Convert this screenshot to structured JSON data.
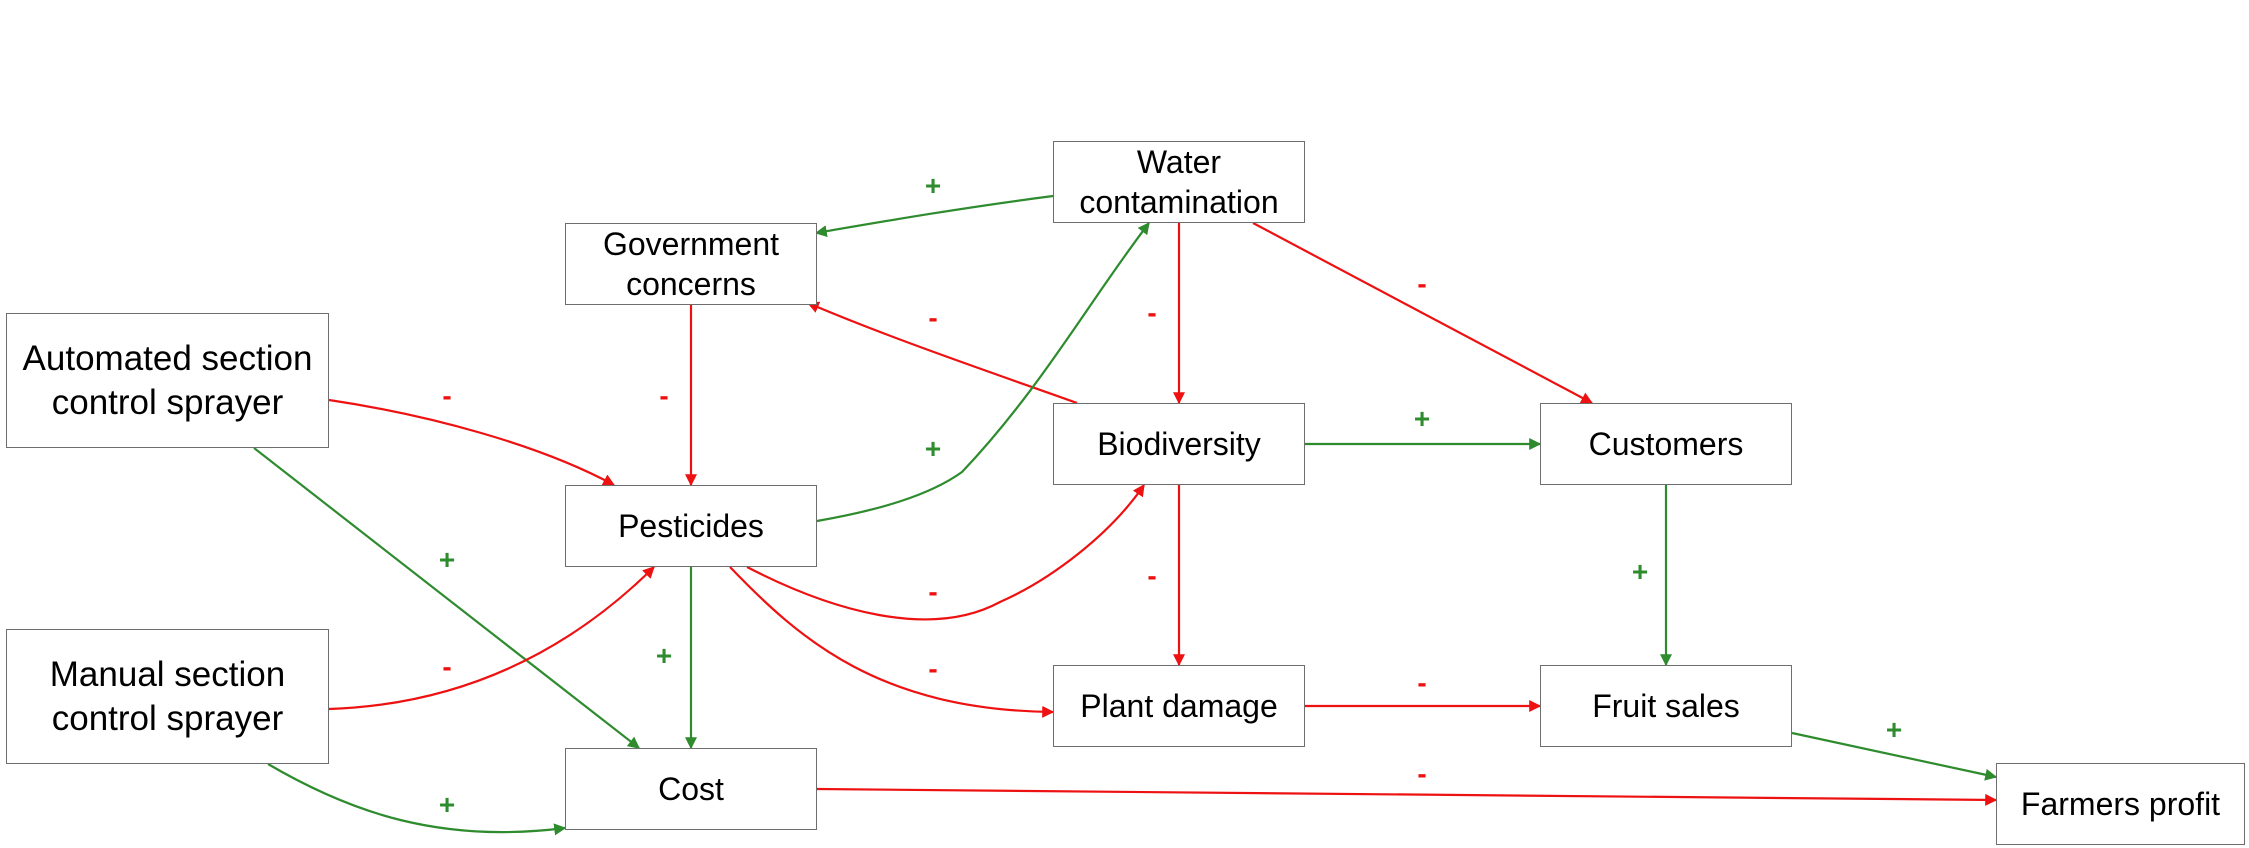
{
  "colors": {
    "positive": "#2e8b2e",
    "negative": "#ee1111",
    "border": "#6e6e6e",
    "text": "#000000"
  },
  "nodes": {
    "water_contamination": "Water\ncontamination",
    "government_concerns": "Government\nconcerns",
    "automated_sprayer": "Automated section\ncontrol sprayer",
    "manual_sprayer": "Manual section\ncontrol sprayer",
    "pesticides": "Pesticides",
    "biodiversity": "Biodiversity",
    "customers": "Customers",
    "plant_damage": "Plant damage",
    "fruit_sales": "Fruit sales",
    "cost": "Cost",
    "farmers_profit": "Farmers profit"
  },
  "edges": [
    {
      "id": "water-to-government",
      "from": "water_contamination",
      "to": "government_concerns",
      "sign": "+",
      "polarity": "positive"
    },
    {
      "id": "water-to-biodiversity",
      "from": "water_contamination",
      "to": "biodiversity",
      "sign": "-",
      "polarity": "negative"
    },
    {
      "id": "water-to-customers",
      "from": "water_contamination",
      "to": "customers",
      "sign": "-",
      "polarity": "negative"
    },
    {
      "id": "biodiversity-to-government",
      "from": "biodiversity",
      "to": "government_concerns",
      "sign": "-",
      "polarity": "negative"
    },
    {
      "id": "government-to-pesticides",
      "from": "government_concerns",
      "to": "pesticides",
      "sign": "-",
      "polarity": "negative"
    },
    {
      "id": "automated-to-pesticides",
      "from": "automated_sprayer",
      "to": "pesticides",
      "sign": "-",
      "polarity": "negative"
    },
    {
      "id": "automated-to-cost",
      "from": "automated_sprayer",
      "to": "cost",
      "sign": "+",
      "polarity": "positive"
    },
    {
      "id": "pesticides-to-water",
      "from": "pesticides",
      "to": "water_contamination",
      "sign": "+",
      "polarity": "positive"
    },
    {
      "id": "manual-to-pesticides",
      "from": "manual_sprayer",
      "to": "pesticides",
      "sign": "-",
      "polarity": "negative"
    },
    {
      "id": "manual-to-cost",
      "from": "manual_sprayer",
      "to": "cost",
      "sign": "+",
      "polarity": "positive"
    },
    {
      "id": "pesticides-to-cost",
      "from": "pesticides",
      "to": "cost",
      "sign": "+",
      "polarity": "positive"
    },
    {
      "id": "pesticides-to-biodiversity",
      "from": "pesticides",
      "to": "biodiversity",
      "sign": "-",
      "polarity": "negative"
    },
    {
      "id": "pesticides-to-plant-damage",
      "from": "pesticides",
      "to": "plant_damage",
      "sign": "-",
      "polarity": "negative"
    },
    {
      "id": "biodiversity-to-customers",
      "from": "biodiversity",
      "to": "customers",
      "sign": "+",
      "polarity": "positive"
    },
    {
      "id": "biodiversity-to-plant-damage",
      "from": "biodiversity",
      "to": "plant_damage",
      "sign": "-",
      "polarity": "negative"
    },
    {
      "id": "customers-to-fruit-sales",
      "from": "customers",
      "to": "fruit_sales",
      "sign": "+",
      "polarity": "positive"
    },
    {
      "id": "plant-damage-to-fruit-sales",
      "from": "plant_damage",
      "to": "fruit_sales",
      "sign": "-",
      "polarity": "negative"
    },
    {
      "id": "fruit-sales-to-profit",
      "from": "fruit_sales",
      "to": "farmers_profit",
      "sign": "+",
      "polarity": "positive"
    },
    {
      "id": "cost-to-profit",
      "from": "cost",
      "to": "farmers_profit",
      "sign": "-",
      "polarity": "negative"
    }
  ]
}
